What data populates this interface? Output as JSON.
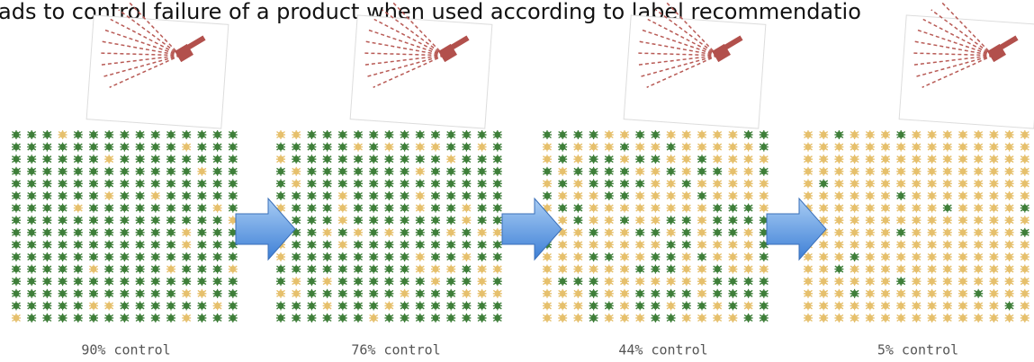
{
  "header": {
    "title": "ads to control failure of a product when used according to label recommendatio"
  },
  "panels": [
    {
      "label": "90% control"
    },
    {
      "label": "76% control"
    },
    {
      "label": "44% control"
    },
    {
      "label": "5% control"
    }
  ]
}
